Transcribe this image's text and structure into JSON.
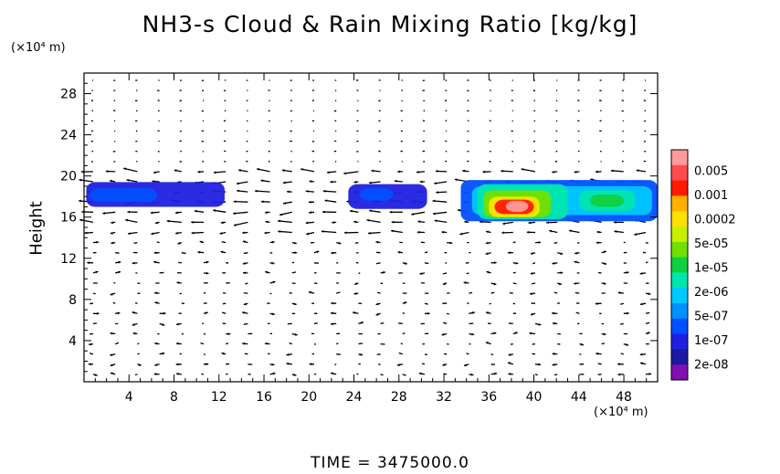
{
  "chart_data": {
    "type": "heatmap",
    "title": "NH3-s Cloud & Rain Mixing Ratio [kg/kg]",
    "ylabel": "Height",
    "xunit": "(×10⁴ m)",
    "yunit": "(×10⁴ m)",
    "footer": "TIME = 3475000.0",
    "xlim": [
      0,
      51
    ],
    "ylim": [
      0,
      30
    ],
    "xticks": [
      4,
      8,
      12,
      16,
      20,
      24,
      28,
      32,
      36,
      40,
      44,
      48
    ],
    "yticks": [
      4,
      8,
      12,
      16,
      20,
      24,
      28
    ],
    "colorbar": {
      "labels": [
        "0.005",
        "0.001",
        "0.0002",
        "5e-05",
        "1e-05",
        "2e-06",
        "5e-07",
        "1e-07",
        "2e-08"
      ],
      "colors": [
        "#ff9a9a",
        "#ff4d4d",
        "#ff1a00",
        "#ffb000",
        "#ffe000",
        "#c8f000",
        "#70e000",
        "#10d040",
        "#00e6b0",
        "#00c8ff",
        "#0090ff",
        "#0050ff",
        "#2020e0",
        "#1a1aa0",
        "#8010b0"
      ]
    },
    "cloud_regions": [
      {
        "x": [
          0.2,
          12.5
        ],
        "y": [
          17.0,
          19.4
        ],
        "level": 12
      },
      {
        "x": [
          0.5,
          6.5
        ],
        "y": [
          17.5,
          18.8
        ],
        "level": 11
      },
      {
        "x": [
          23.5,
          30.5
        ],
        "y": [
          16.8,
          19.2
        ],
        "level": 12
      },
      {
        "x": [
          24.5,
          27.5
        ],
        "y": [
          17.6,
          18.8
        ],
        "level": 11
      },
      {
        "x": [
          33.5,
          51
        ],
        "y": [
          15.6,
          19.6
        ],
        "level": 11
      },
      {
        "x": [
          34.5,
          50.5
        ],
        "y": [
          16.2,
          19.0
        ],
        "level": 9
      },
      {
        "x": [
          35.0,
          43.0
        ],
        "y": [
          15.8,
          19.2
        ],
        "level": 8
      },
      {
        "x": [
          35.5,
          41.5
        ],
        "y": [
          16.0,
          18.6
        ],
        "level": 6
      },
      {
        "x": [
          36.0,
          40.5
        ],
        "y": [
          16.0,
          18.0
        ],
        "level": 4
      },
      {
        "x": [
          36.5,
          40.0
        ],
        "y": [
          16.3,
          17.7
        ],
        "level": 2
      },
      {
        "x": [
          37.5,
          39.5
        ],
        "y": [
          16.5,
          17.6
        ],
        "level": 0
      },
      {
        "x": [
          44.0,
          49.0
        ],
        "y": [
          16.6,
          18.6
        ],
        "level": 8
      },
      {
        "x": [
          45.0,
          48.0
        ],
        "y": [
          17.0,
          18.2
        ],
        "level": 7
      }
    ]
  }
}
